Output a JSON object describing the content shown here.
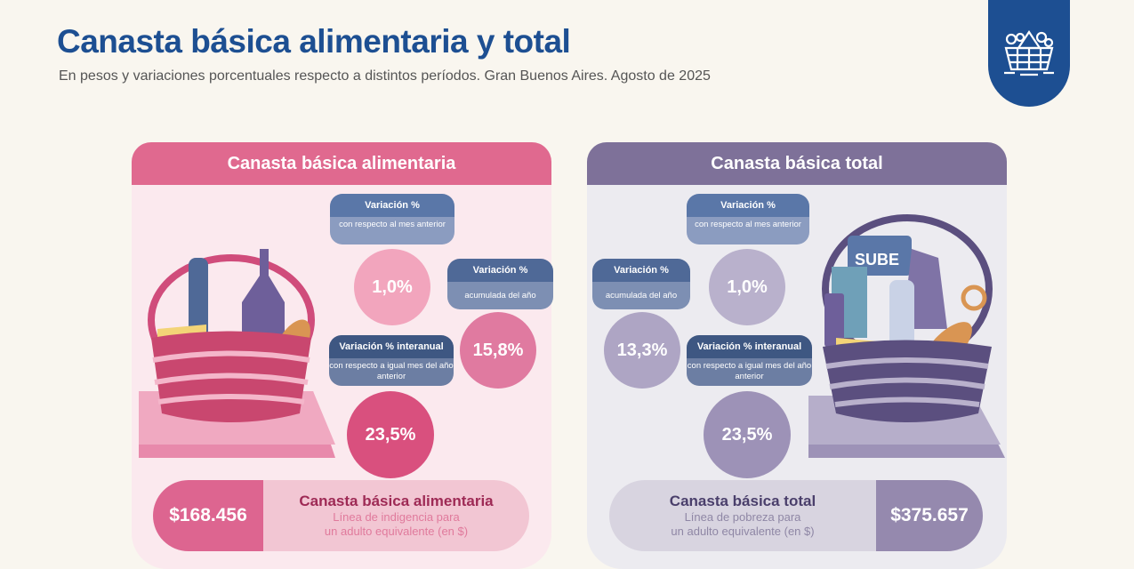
{
  "header": {
    "title": "Canasta básica alimentaria y total",
    "subtitle": "En pesos y variaciones porcentuales respecto a distintos períodos. Gran Buenos Aires. Agosto de 2025",
    "logo_icon": "basket-icon"
  },
  "colors": {
    "brand_blue": "#1d4f92",
    "cba_pink": "#e0698f",
    "cbt_purple": "#7e7199"
  },
  "cba": {
    "heading": "Canasta básica alimentaria",
    "monthly": {
      "title": "Variación %",
      "desc": "con respecto al mes anterior",
      "value": "1,0%"
    },
    "ytd": {
      "title": "Variación %",
      "desc": "acumulada del año",
      "value": "15,8%"
    },
    "yoy": {
      "title": "Variación % interanual",
      "desc": "con respecto a igual mes del año anterior",
      "value": "23,5%"
    },
    "amount": "$168.456",
    "footer_title": "Canasta básica alimentaria",
    "footer_line1": "Línea de indigencia para",
    "footer_line2": "un adulto equivalente (en $)"
  },
  "cbt": {
    "heading": "Canasta básica total",
    "monthly": {
      "title": "Variación %",
      "desc": "con respecto al mes anterior",
      "value": "1,0%"
    },
    "ytd": {
      "title": "Variación %",
      "desc": "acumulada del año",
      "value": "13,3%"
    },
    "yoy": {
      "title": "Variación % interanual",
      "desc": "con respecto a igual mes del año anterior",
      "value": "23,5%"
    },
    "amount": "$375.657",
    "footer_title": "Canasta básica total",
    "footer_line1": "Línea de pobreza para",
    "footer_line2": "un adulto equivalente (en $)",
    "card_label": "SUBE"
  }
}
